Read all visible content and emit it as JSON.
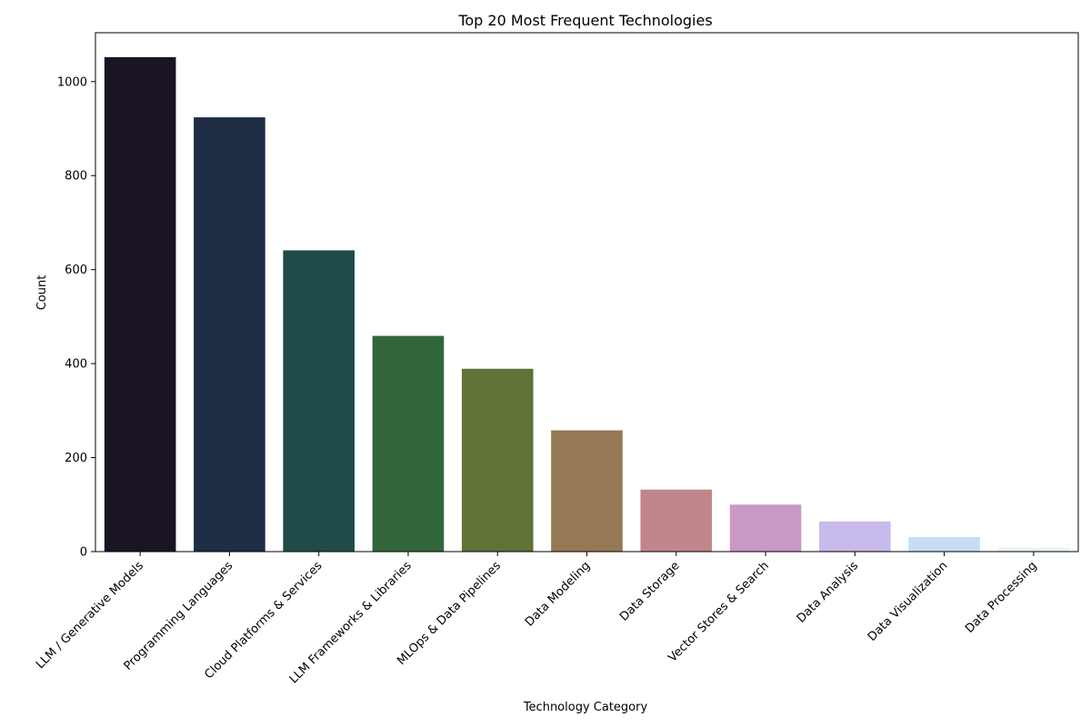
{
  "chart_data": {
    "type": "bar",
    "title": "Top 20 Most Frequent Technologies",
    "xlabel": "Technology Category",
    "ylabel": "Count",
    "categories": [
      "LLM / Generative Models",
      "Programming Languages",
      "Cloud Platforms & Services",
      "LLM Frameworks & Libraries",
      "MLOps & Data Pipelines",
      "Data Modeling",
      "Data Storage",
      "Vector Stores & Search",
      "Data Analysis",
      "Data Visualization",
      "Data Processing"
    ],
    "values": [
      1052,
      924,
      641,
      459,
      389,
      258,
      132,
      100,
      64,
      31,
      8
    ],
    "colors": [
      "#1b1423",
      "#1f2d45",
      "#1f4b4a",
      "#31663b",
      "#5f7238",
      "#977854",
      "#c1868b",
      "#ca98c4",
      "#c8baea",
      "#c7ddf2",
      "#e6f5ef"
    ],
    "ylim": [
      0,
      1104
    ],
    "yticks": [
      0,
      200,
      400,
      600,
      800,
      1000
    ],
    "grid": false,
    "legend": "none"
  }
}
